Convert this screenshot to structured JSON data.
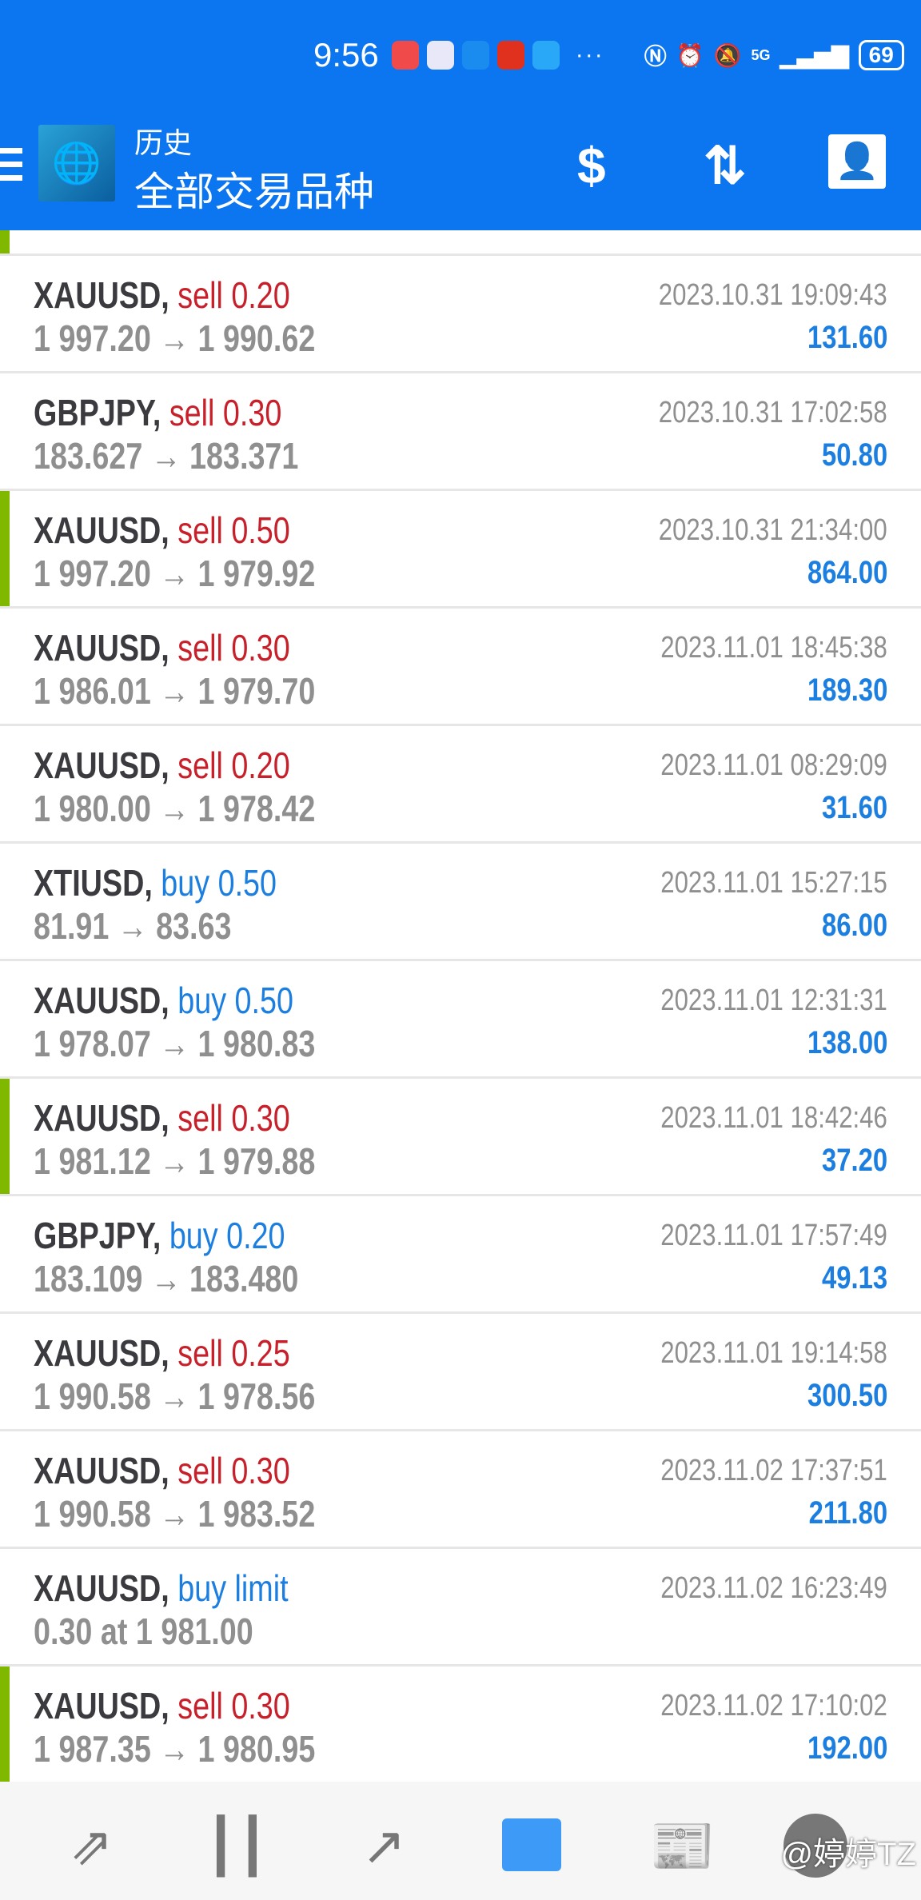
{
  "status_bar": {
    "time": "9:56",
    "battery": "69",
    "network": "5G"
  },
  "header": {
    "title": "历史",
    "subtitle": "全部交易品种",
    "icons": [
      "menu-icon",
      "mt4-logo",
      "currency-exchange-icon",
      "sort-icon",
      "calendar-contact-icon"
    ]
  },
  "colors": {
    "header": "#0c76f0",
    "sell": "#c8202a",
    "buy": "#1c7fe0",
    "profit": "#1c7fe0",
    "marker": "#80b800"
  },
  "rows": [
    {
      "symbol": "XAUUSD,",
      "type": "sell",
      "volume": "0.20",
      "prices": "1 997.20 → 1 990.62",
      "time": "2023.10.31 19:09:43",
      "profit": "131.60",
      "mark": false
    },
    {
      "symbol": "GBPJPY,",
      "type": "sell",
      "volume": "0.30",
      "prices": "183.627 → 183.371",
      "time": "2023.10.31 17:02:58",
      "profit": "50.80",
      "mark": false
    },
    {
      "symbol": "XAUUSD,",
      "type": "sell",
      "volume": "0.50",
      "prices": "1 997.20 → 1 979.92",
      "time": "2023.10.31 21:34:00",
      "profit": "864.00",
      "mark": true
    },
    {
      "symbol": "XAUUSD,",
      "type": "sell",
      "volume": "0.30",
      "prices": "1 986.01 → 1 979.70",
      "time": "2023.11.01 18:45:38",
      "profit": "189.30",
      "mark": false
    },
    {
      "symbol": "XAUUSD,",
      "type": "sell",
      "volume": "0.20",
      "prices": "1 980.00 → 1 978.42",
      "time": "2023.11.01 08:29:09",
      "profit": "31.60",
      "mark": false
    },
    {
      "symbol": "XTIUSD,",
      "type": "buy",
      "volume": "0.50",
      "prices": "81.91 → 83.63",
      "time": "2023.11.01 15:27:15",
      "profit": "86.00",
      "mark": false
    },
    {
      "symbol": "XAUUSD,",
      "type": "buy",
      "volume": "0.50",
      "prices": "1 978.07 → 1 980.83",
      "time": "2023.11.01 12:31:31",
      "profit": "138.00",
      "mark": false
    },
    {
      "symbol": "XAUUSD,",
      "type": "sell",
      "volume": "0.30",
      "prices": "1 981.12 → 1 979.88",
      "time": "2023.11.01 18:42:46",
      "profit": "37.20",
      "mark": true
    },
    {
      "symbol": "GBPJPY,",
      "type": "buy",
      "volume": "0.20",
      "prices": "183.109 → 183.480",
      "time": "2023.11.01 17:57:49",
      "profit": "49.13",
      "mark": false
    },
    {
      "symbol": "XAUUSD,",
      "type": "sell",
      "volume": "0.25",
      "prices": "1 990.58 → 1 978.56",
      "time": "2023.11.01 19:14:58",
      "profit": "300.50",
      "mark": false
    },
    {
      "symbol": "XAUUSD,",
      "type": "sell",
      "volume": "0.30",
      "prices": "1 990.58 → 1 983.52",
      "time": "2023.11.02 17:37:51",
      "profit": "211.80",
      "mark": false
    },
    {
      "symbol": "XAUUSD,",
      "type": "buy limit",
      "volume": "",
      "prices": "0.30 at 1 981.00",
      "time": "2023.11.02 16:23:49",
      "profit": "",
      "mark": false
    },
    {
      "symbol": "XAUUSD,",
      "type": "sell",
      "volume": "0.30",
      "prices": "1 987.35 → 1 980.95",
      "time": "2023.11.02 17:10:02",
      "profit": "192.00",
      "mark": true
    }
  ],
  "bottom_nav": {
    "items": [
      "quotes",
      "chart",
      "trade",
      "history",
      "news",
      "chat"
    ],
    "active": "history"
  },
  "watermark": "@婷婷TZ"
}
